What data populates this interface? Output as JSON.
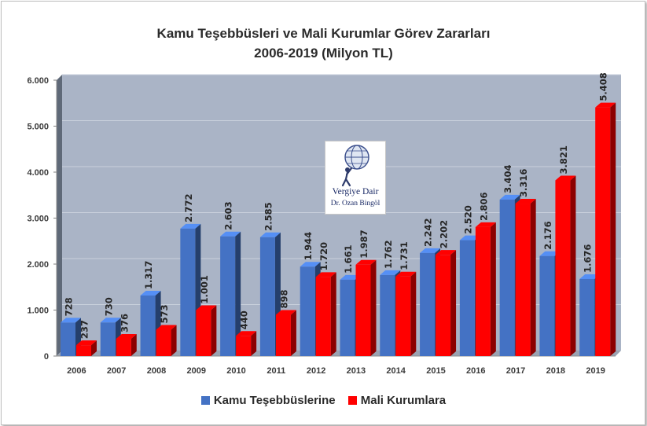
{
  "chart_data": {
    "type": "bar",
    "title": "Kamu Teşebbüsleri ve Mali Kurumlar Görev Zararları",
    "subtitle": "2006-2019 (Milyon TL)",
    "categories": [
      "2006",
      "2007",
      "2008",
      "2009",
      "2010",
      "2011",
      "2012",
      "2013",
      "2014",
      "2015",
      "2016",
      "2017",
      "2018",
      "2019"
    ],
    "series": [
      {
        "name": "Kamu Teşebbüslerine",
        "color": "#4472c4",
        "values": [
          728,
          730,
          1317,
          2772,
          2603,
          2585,
          1944,
          1661,
          1762,
          2242,
          2520,
          3404,
          2176,
          1676
        ],
        "labels": [
          "728",
          "730",
          "1.317",
          "2.772",
          "2.603",
          "2.585",
          "1.944",
          "1.661",
          "1.762",
          "2.242",
          "2.520",
          "3.404",
          "2.176",
          "1.676"
        ]
      },
      {
        "name": "Mali Kurumlara",
        "color": "#ff0000",
        "values": [
          237,
          376,
          573,
          1001,
          440,
          898,
          1720,
          1987,
          1731,
          2202,
          2806,
          3316,
          3821,
          5408
        ],
        "labels": [
          "237",
          "376",
          "573",
          "1.001",
          "440",
          "898",
          "1.720",
          "1.987",
          "1.731",
          "2.202",
          "2.806",
          "3.316",
          "3.821",
          "5.408"
        ]
      }
    ],
    "ylim": [
      0,
      6000
    ],
    "yticks": [
      0,
      1000,
      2000,
      3000,
      4000,
      5000,
      6000
    ],
    "ytick_labels": [
      "0",
      "1.000",
      "2.000",
      "3.000",
      "4.000",
      "5.000",
      "6.000"
    ],
    "xlabel": "",
    "ylabel": "",
    "grid": true,
    "legend_position": "bottom",
    "style": "3d-column",
    "wall_color": "#aab4c6"
  },
  "logo": {
    "line1": "Vergiye Dair",
    "line2": "Dr. Ozan Bingöl"
  }
}
